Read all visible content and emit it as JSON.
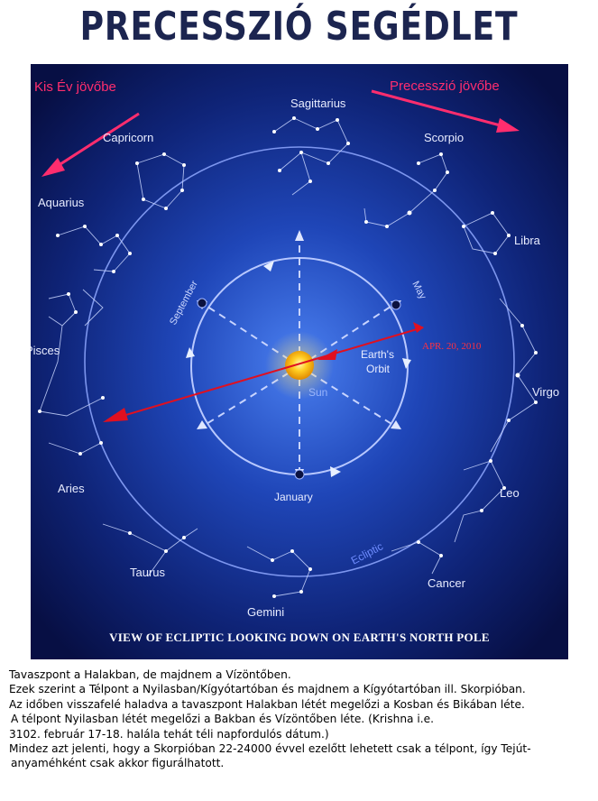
{
  "title": "PRECESSZIÓ SEGÉDLET",
  "diagram": {
    "labels": {
      "kis_ev": "Kis Év jövőbe",
      "precesszio": "Precesszió jövőbe",
      "date": "APR. 20, 2010",
      "earths_orbit_line1": "Earth's",
      "earths_orbit_line2": "Orbit",
      "sun": "Sun",
      "september": "September",
      "may": "May",
      "january": "January",
      "ecliptic": "Ecliptic",
      "footer": "VIEW OF ECLIPTIC LOOKING DOWN ON EARTH'S NORTH POLE"
    },
    "constellations": {
      "sagittarius": "Sagittarius",
      "capricorn": "Capricorn",
      "scorpio": "Scorpio",
      "aquarius": "Aquarius",
      "libra": "Libra",
      "pisces": "Pisces",
      "virgo": "Virgo",
      "aries": "Aries",
      "leo": "Leo",
      "taurus": "Taurus",
      "cancer": "Cancer",
      "gemini": "Gemini"
    },
    "colors": {
      "background": "#0a1450",
      "center_glow": "#3a6fe0",
      "arrow_pink": "#ff2d6e",
      "arrow_red": "#e01020",
      "label_white": "#e8ecff"
    }
  },
  "caption": [
    "Tavaszpont a Halakban, de majdnem a Vízöntőben.",
    "Ezek szerint a Télpont a Nyilasban/Kígyótartóban és majdnem a Kígyótartóban ill. Skorpióban.",
    "Az időben visszafelé haladva a tavaszpont Halakban létét megelőzi a Kosban és Bikában léte.",
    "A télpont Nyilasban létét megelőzi a Bakban és Vízöntőben léte. (Krishna i.e.",
    "3102. február 17-18. halála tehát téli napfordulós dátum.)",
    "Mindez azt jelenti, hogy a Skorpióban 22-24000 évvel ezelőtt lehetett csak a télpont, így Tejút-",
    "anyaméhként csak akkor figurálhatott."
  ]
}
